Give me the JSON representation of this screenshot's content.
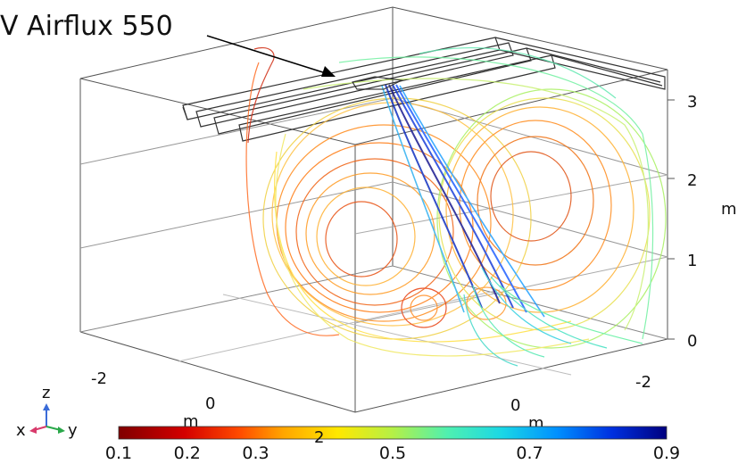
{
  "annotation": {
    "text": "V Airflux 550"
  },
  "axes": {
    "z_ticks": [
      "3",
      "2",
      "1",
      "0"
    ],
    "z_unit": "m",
    "x_ticks": [
      "-2",
      "0"
    ],
    "x_unit": "m",
    "y_ticks": [
      "0",
      "-2"
    ],
    "y_unit": "m"
  },
  "triad": {
    "x": "x",
    "y": "y",
    "z": "z"
  },
  "colorbar": {
    "ticks": [
      "0.1",
      "0.2",
      "0.3",
      "0.5",
      "0.7",
      "0.9"
    ],
    "tick_values": [
      0.1,
      0.2,
      0.3,
      0.5,
      0.7,
      0.9
    ],
    "min": 0.1,
    "max": 0.9,
    "overlap_label": "2",
    "colormap": [
      "#7f0000",
      "#d40000",
      "#ff4a00",
      "#ffa500",
      "#ffe800",
      "#b5f046",
      "#4ff0b0",
      "#1ad7e6",
      "#0090ff",
      "#0030e0",
      "#00007f"
    ]
  },
  "colors": {
    "edge": "#555555",
    "slab": "#333333",
    "low": "#ff8a1a",
    "mid": "#e8f05a",
    "high": "#1a3fd8"
  }
}
